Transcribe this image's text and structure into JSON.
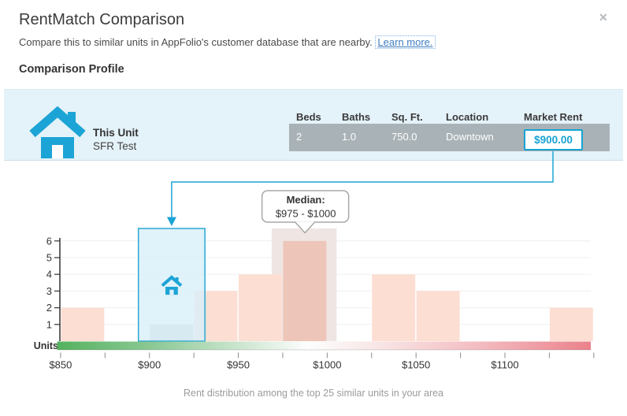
{
  "header": {
    "title": "RentMatch Comparison",
    "subtitle": "Compare this to similar units in AppFolio's customer database that are nearby.",
    "learn_more_label": "Learn more.",
    "close_glyph": "✕"
  },
  "section_title": "Comparison Profile",
  "profile": {
    "unit_label": "This Unit",
    "unit_name": "SFR Test",
    "columns": [
      "Beds",
      "Baths",
      "Sq. Ft.",
      "Location",
      "Market Rent"
    ],
    "row": {
      "beds": "2",
      "baths": "1.0",
      "sqft": "750.0",
      "location": "Downtown",
      "market_rent": "$900.00"
    }
  },
  "chart_data": {
    "type": "bar",
    "title": "",
    "ylabel": "Units",
    "caption": "Rent distribution among the top 25 similar units in your area",
    "x_range": [
      850,
      1150
    ],
    "bin_width": 25,
    "ylim": [
      0,
      6
    ],
    "y_ticks": [
      1,
      2,
      3,
      4,
      5,
      6
    ],
    "x_axis": [
      {
        "value": 850,
        "label": "$850"
      },
      {
        "value": 900,
        "label": "$900"
      },
      {
        "value": 950,
        "label": "$950"
      },
      {
        "value": 1000,
        "label": "$1000"
      },
      {
        "value": 1050,
        "label": "$1050"
      },
      {
        "value": 1100,
        "label": "$1100"
      }
    ],
    "bins": [
      {
        "start": 850,
        "end": 875,
        "count": 2
      },
      {
        "start": 875,
        "end": 900,
        "count": 0
      },
      {
        "start": 900,
        "end": 925,
        "count": 1,
        "highlight": "unit"
      },
      {
        "start": 925,
        "end": 950,
        "count": 3
      },
      {
        "start": 950,
        "end": 975,
        "count": 4
      },
      {
        "start": 975,
        "end": 1000,
        "count": 6,
        "highlight": "median"
      },
      {
        "start": 1000,
        "end": 1025,
        "count": 0
      },
      {
        "start": 1025,
        "end": 1050,
        "count": 4
      },
      {
        "start": 1050,
        "end": 1075,
        "count": 3
      },
      {
        "start": 1075,
        "end": 1100,
        "count": 0
      },
      {
        "start": 1100,
        "end": 1125,
        "count": 0
      },
      {
        "start": 1125,
        "end": 1150,
        "count": 2
      }
    ],
    "unit_marker": {
      "value_label": "$900.00",
      "bin_start": 900
    },
    "median_tooltip": {
      "title": "Median:",
      "range": "$975 - $1000"
    }
  },
  "colors": {
    "accent": "#1ca4d6",
    "accent_border": "#29a9d4",
    "bar": "#fcded3",
    "median_bar": "#eec5b9",
    "median_band": "#efe6e3",
    "grayed_bar": "#d2cfd0",
    "unit_band_fill": "rgba(216,239,249,0.8)",
    "grid": "#efefef",
    "axis": "#333333",
    "tick": "#8c8c8c",
    "caption": "#9b9b9b",
    "tooltip_border": "#a8a8a8",
    "row_bg": "#a9b2b6",
    "panel_bg": "#e4f2f9",
    "gradient": [
      [
        0,
        "#54b25f"
      ],
      [
        0.18,
        "#8cc995"
      ],
      [
        0.36,
        "#d3e9d6"
      ],
      [
        0.47,
        "#fdfdfd"
      ],
      [
        0.6,
        "#f8e6e6"
      ],
      [
        0.78,
        "#f3bfc3"
      ],
      [
        1,
        "#eb818b"
      ]
    ]
  }
}
